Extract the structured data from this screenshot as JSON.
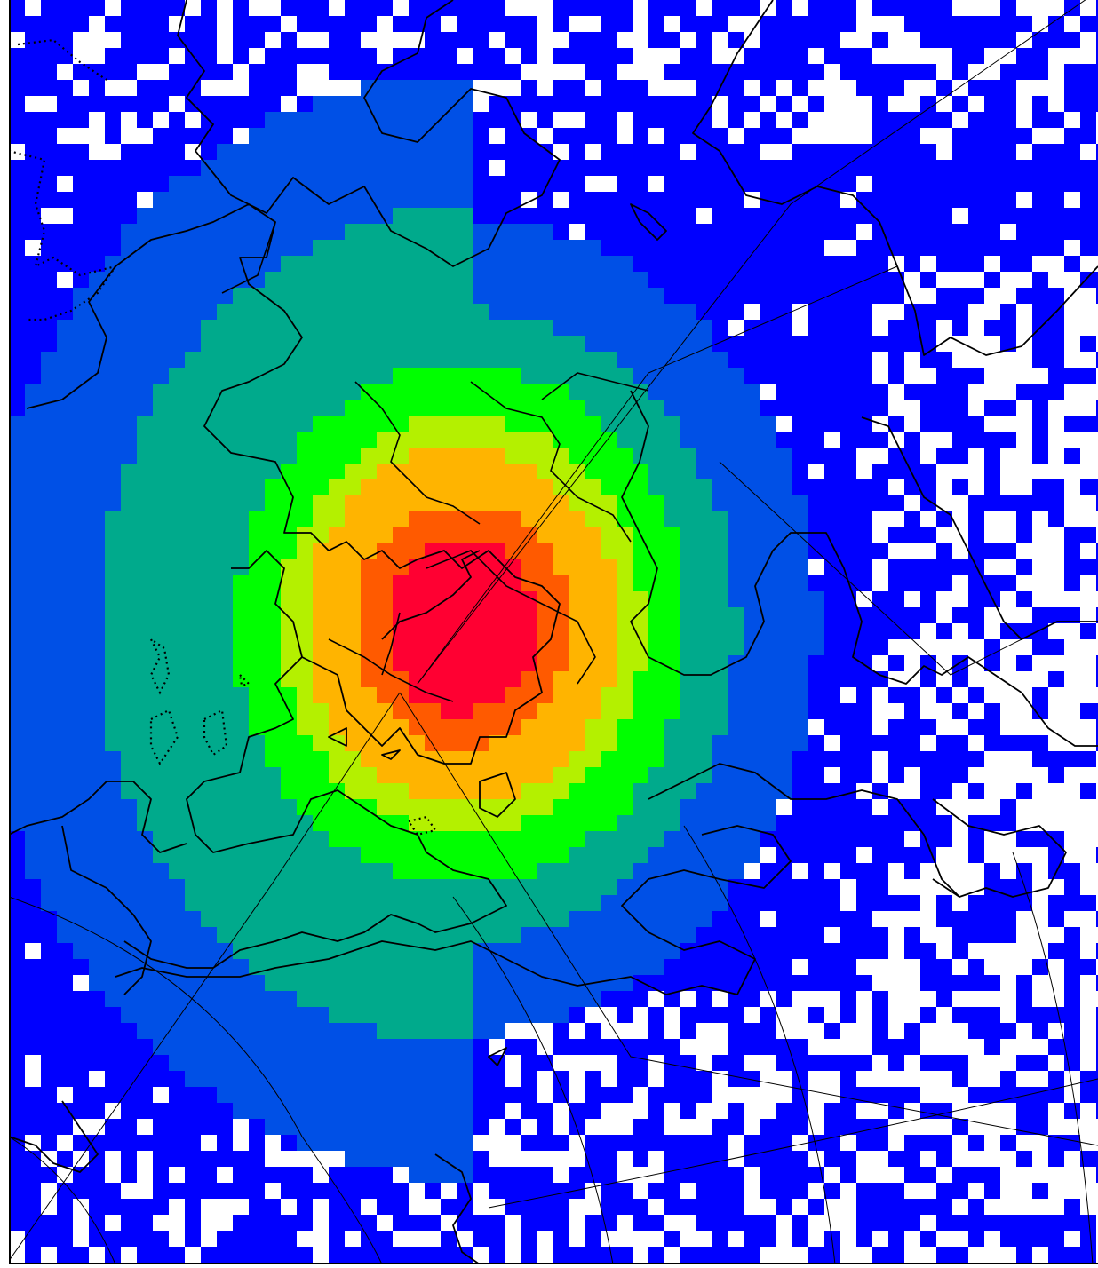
{
  "map": {
    "type": "gridded-concentration-map",
    "projection": "polar-stereographic",
    "palette": {
      "background": "#ffffff",
      "level1": "#0000ff",
      "level2": "#0050e6",
      "level3": "#00aa8c",
      "level4": "#00ff00",
      "level5": "#b4f000",
      "level6": "#ffb400",
      "level7": "#ff5a00",
      "level8": "#ff0032",
      "level9": "#b4007d"
    },
    "boundaries": {
      "coastline": "#000000",
      "graticule": "#000000",
      "lakes_dotted": "#000000"
    },
    "labels": []
  }
}
